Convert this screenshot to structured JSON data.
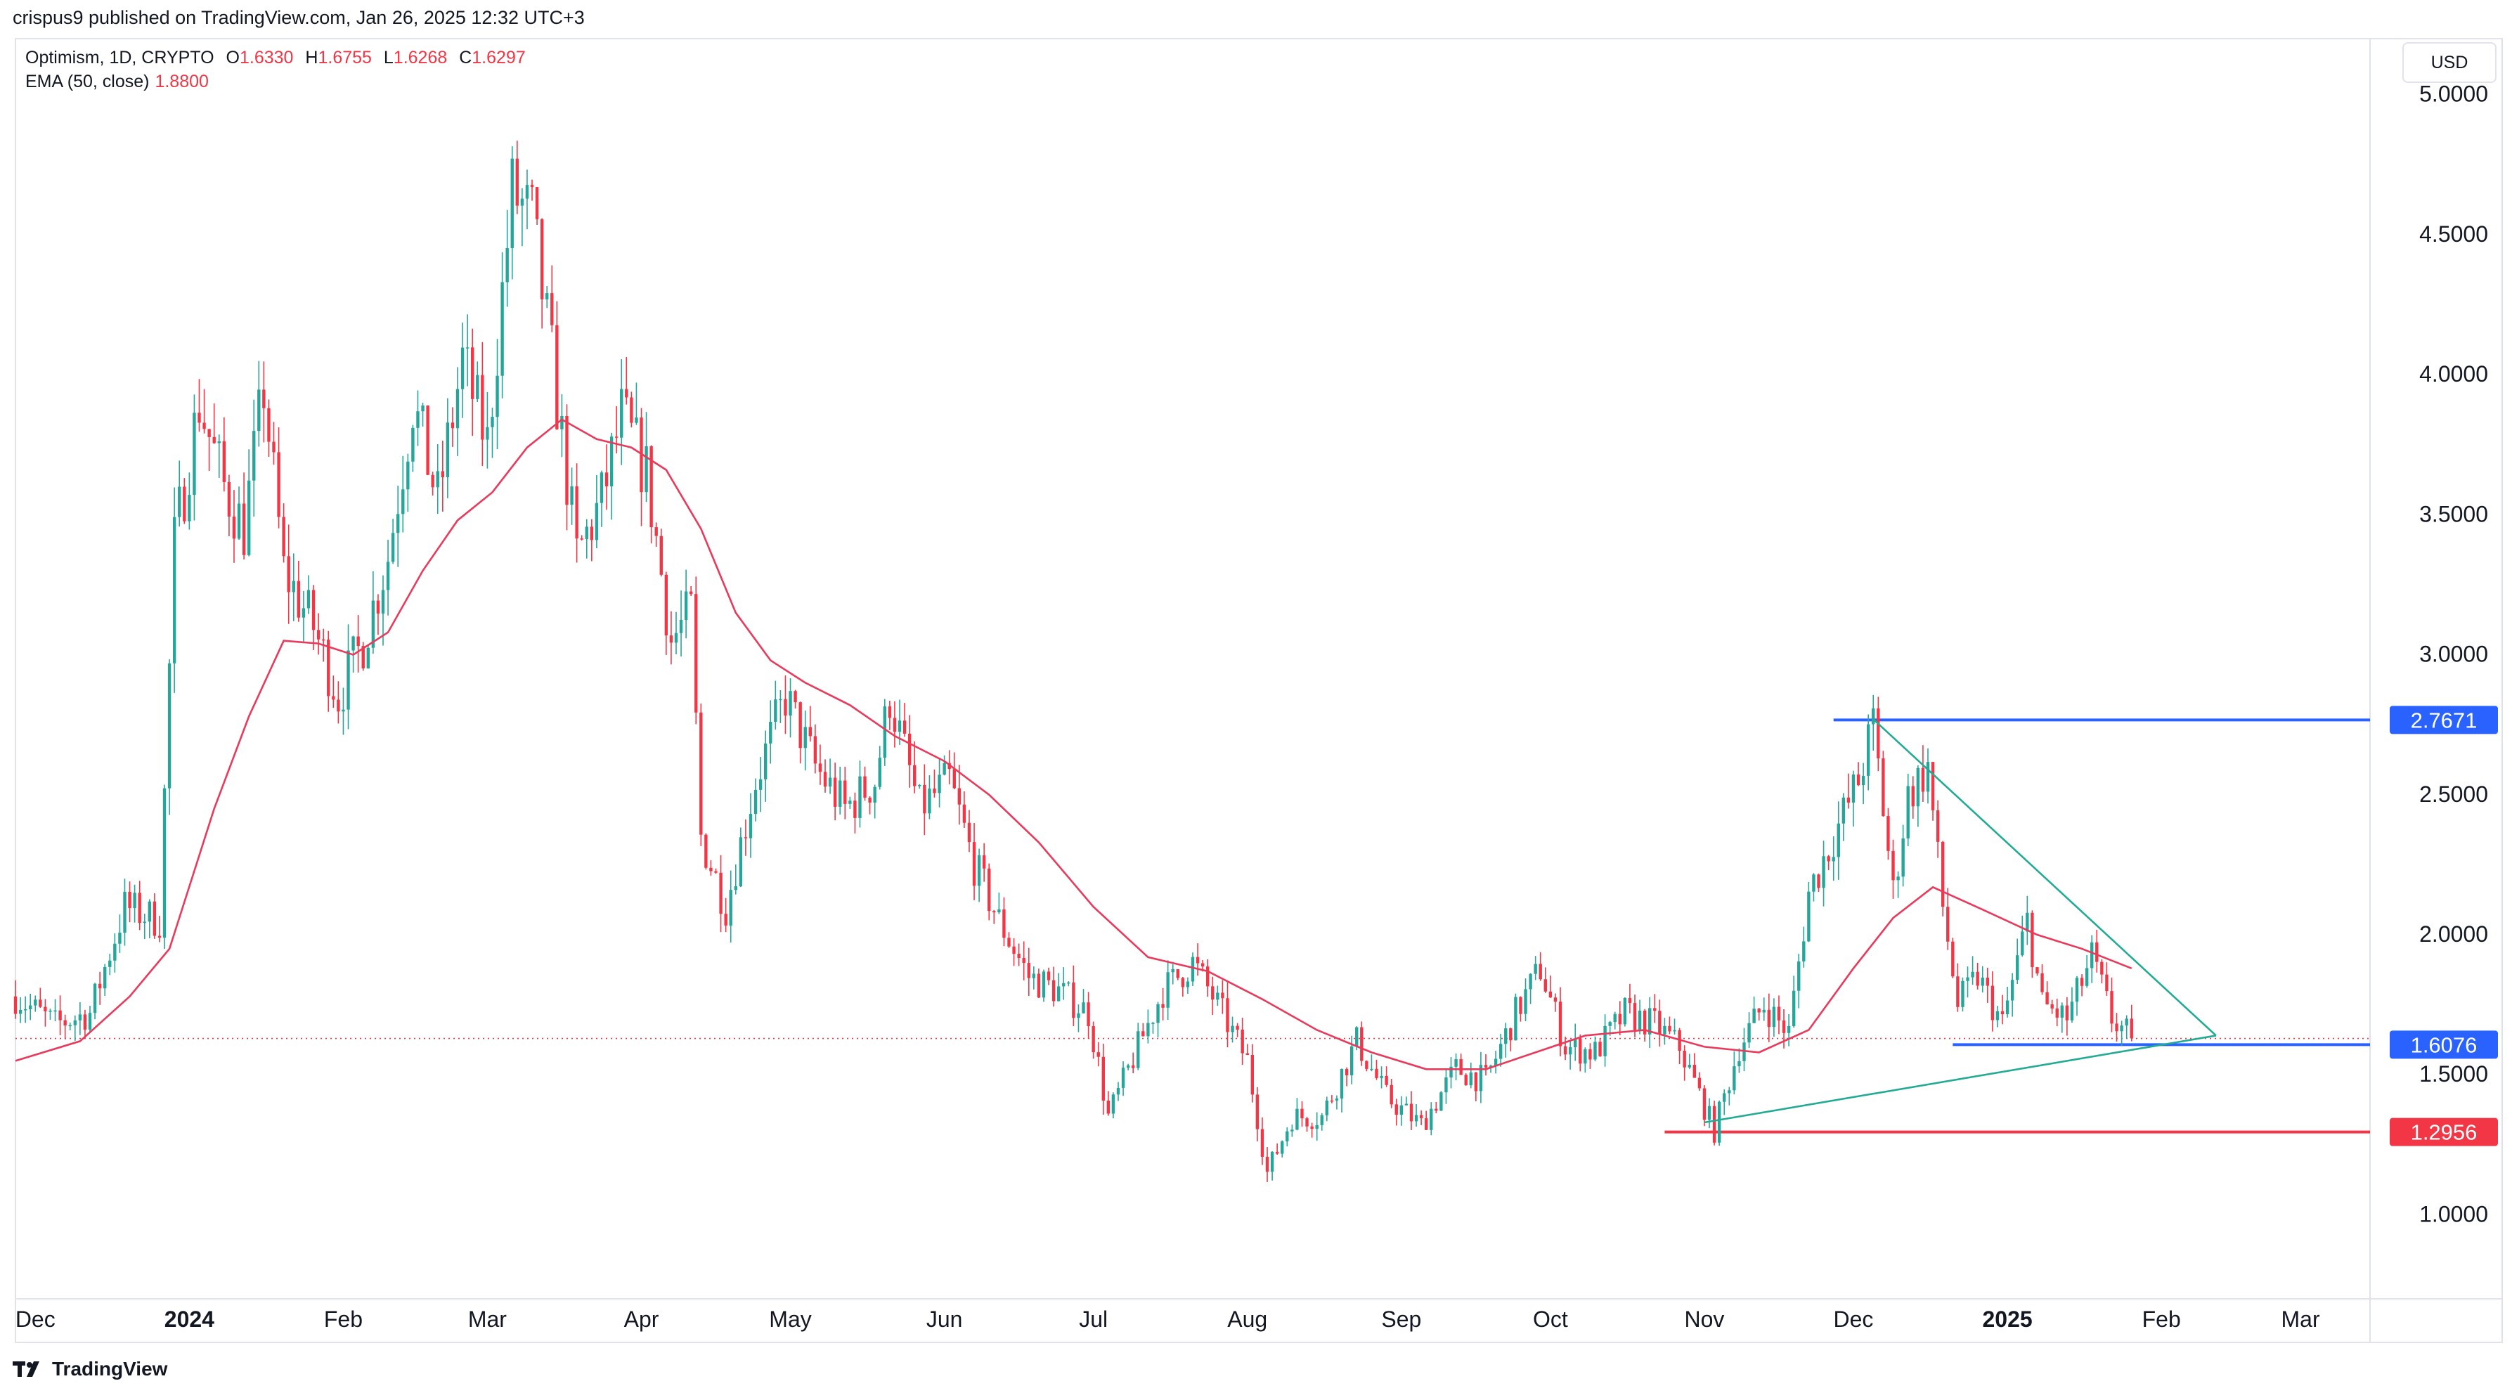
{
  "header": {
    "publisher_line": "crispus9 published on TradingView.com, Jan 26, 2025 12:32 UTC+3"
  },
  "legend": {
    "symbol": "Optimism, 1D, CRYPTO",
    "open_label": "O",
    "open": "1.6330",
    "high_label": "H",
    "high": "1.6755",
    "low_label": "L",
    "low": "1.6268",
    "close_label": "C",
    "close": "1.6297",
    "ema_label": "EMA (50, close)",
    "ema_value": "1.8800"
  },
  "currency_button": "USD",
  "footer": {
    "brand": "TradingView"
  },
  "colors": {
    "up": "#26a69a",
    "down": "#f23645",
    "ema": "#ea3a5c",
    "level_blue": "#2962ff",
    "level_red": "#f23645",
    "trend": "#22ab94"
  },
  "chart_data": {
    "type": "candlestick",
    "interval": "1D",
    "y_scale": "linear",
    "ylim": [
      0.7,
      5.2
    ],
    "y_ticks": [
      "1.0000",
      "1.5000",
      "2.0000",
      "2.5000",
      "3.0000",
      "3.5000",
      "4.0000",
      "4.5000",
      "5.0000"
    ],
    "x_range": [
      "2023-11-27",
      "2025-03-15"
    ],
    "x_ticks": [
      {
        "label": "Dec",
        "date": "2023-12-01",
        "bold": false
      },
      {
        "label": "2024",
        "date": "2024-01-01",
        "bold": true
      },
      {
        "label": "Feb",
        "date": "2024-02-01",
        "bold": false
      },
      {
        "label": "Mar",
        "date": "2024-03-01",
        "bold": false
      },
      {
        "label": "Apr",
        "date": "2024-04-01",
        "bold": false
      },
      {
        "label": "May",
        "date": "2024-05-01",
        "bold": false
      },
      {
        "label": "Jun",
        "date": "2024-06-01",
        "bold": false
      },
      {
        "label": "Jul",
        "date": "2024-07-01",
        "bold": false
      },
      {
        "label": "Aug",
        "date": "2024-08-01",
        "bold": false
      },
      {
        "label": "Sep",
        "date": "2024-09-01",
        "bold": false
      },
      {
        "label": "Oct",
        "date": "2024-10-01",
        "bold": false
      },
      {
        "label": "Nov",
        "date": "2024-11-01",
        "bold": false
      },
      {
        "label": "Dec",
        "date": "2024-12-01",
        "bold": false
      },
      {
        "label": "2025",
        "date": "2025-01-01",
        "bold": true
      },
      {
        "label": "Feb",
        "date": "2025-02-01",
        "bold": false
      },
      {
        "label": "Mar",
        "date": "2025-03-01",
        "bold": false
      }
    ],
    "close_path": [
      [
        "2023-11-27",
        1.78
      ],
      [
        "2023-12-05",
        1.68
      ],
      [
        "2023-12-12",
        1.72
      ],
      [
        "2023-12-19",
        2.1
      ],
      [
        "2023-12-26",
        2.05
      ],
      [
        "2023-12-29",
        3.4
      ],
      [
        "2024-01-03",
        3.9
      ],
      [
        "2024-01-08",
        3.6
      ],
      [
        "2024-01-12",
        3.45
      ],
      [
        "2024-01-16",
        3.95
      ],
      [
        "2024-01-20",
        3.3
      ],
      [
        "2024-01-26",
        3.1
      ],
      [
        "2024-01-31",
        2.85
      ],
      [
        "2024-02-05",
        3.05
      ],
      [
        "2024-02-10",
        3.35
      ],
      [
        "2024-02-15",
        3.9
      ],
      [
        "2024-02-20",
        3.55
      ],
      [
        "2024-02-25",
        4.05
      ],
      [
        "2024-03-01",
        3.75
      ],
      [
        "2024-03-06",
        4.65
      ],
      [
        "2024-03-10",
        4.55
      ],
      [
        "2024-03-14",
        4.05
      ],
      [
        "2024-03-19",
        3.35
      ],
      [
        "2024-03-24",
        3.55
      ],
      [
        "2024-03-28",
        3.85
      ],
      [
        "2024-04-02",
        3.65
      ],
      [
        "2024-04-07",
        3.05
      ],
      [
        "2024-04-11",
        3.15
      ],
      [
        "2024-04-13",
        2.35
      ],
      [
        "2024-04-18",
        2.1
      ],
      [
        "2024-04-24",
        2.55
      ],
      [
        "2024-04-30",
        2.85
      ],
      [
        "2024-05-06",
        2.6
      ],
      [
        "2024-05-12",
        2.45
      ],
      [
        "2024-05-18",
        2.55
      ],
      [
        "2024-05-21",
        2.85
      ],
      [
        "2024-05-27",
        2.45
      ],
      [
        "2024-06-02",
        2.55
      ],
      [
        "2024-06-07",
        2.25
      ],
      [
        "2024-06-12",
        2.05
      ],
      [
        "2024-06-18",
        1.85
      ],
      [
        "2024-06-24",
        1.8
      ],
      [
        "2024-06-30",
        1.72
      ],
      [
        "2024-07-04",
        1.35
      ],
      [
        "2024-07-10",
        1.6
      ],
      [
        "2024-07-15",
        1.8
      ],
      [
        "2024-07-21",
        1.9
      ],
      [
        "2024-07-26",
        1.75
      ],
      [
        "2024-08-01",
        1.55
      ],
      [
        "2024-08-05",
        1.15
      ],
      [
        "2024-08-10",
        1.35
      ],
      [
        "2024-08-16",
        1.35
      ],
      [
        "2024-08-23",
        1.62
      ],
      [
        "2024-08-29",
        1.42
      ],
      [
        "2024-09-05",
        1.32
      ],
      [
        "2024-09-12",
        1.52
      ],
      [
        "2024-09-18",
        1.48
      ],
      [
        "2024-09-24",
        1.72
      ],
      [
        "2024-09-29",
        1.88
      ],
      [
        "2024-10-04",
        1.6
      ],
      [
        "2024-10-10",
        1.58
      ],
      [
        "2024-10-16",
        1.72
      ],
      [
        "2024-10-22",
        1.68
      ],
      [
        "2024-10-27",
        1.6
      ],
      [
        "2024-11-03",
        1.3
      ],
      [
        "2024-11-08",
        1.6
      ],
      [
        "2024-11-13",
        1.75
      ],
      [
        "2024-11-18",
        1.65
      ],
      [
        "2024-11-22",
        2.15
      ],
      [
        "2024-11-27",
        2.35
      ],
      [
        "2024-12-02",
        2.55
      ],
      [
        "2024-12-05",
        2.75
      ],
      [
        "2024-12-09",
        2.15
      ],
      [
        "2024-12-12",
        2.5
      ],
      [
        "2024-12-16",
        2.6
      ],
      [
        "2024-12-19",
        2.1
      ],
      [
        "2024-12-22",
        1.75
      ],
      [
        "2024-12-26",
        1.85
      ],
      [
        "2024-12-31",
        1.68
      ],
      [
        "2025-01-05",
        2.05
      ],
      [
        "2025-01-08",
        1.75
      ],
      [
        "2025-01-13",
        1.7
      ],
      [
        "2025-01-18",
        1.92
      ],
      [
        "2025-01-22",
        1.7
      ],
      [
        "2025-01-26",
        1.63
      ]
    ],
    "ema_line": [
      [
        "2023-11-27",
        1.55
      ],
      [
        "2023-12-10",
        1.62
      ],
      [
        "2023-12-20",
        1.78
      ],
      [
        "2023-12-28",
        1.95
      ],
      [
        "2024-01-06",
        2.45
      ],
      [
        "2024-01-13",
        2.78
      ],
      [
        "2024-01-20",
        3.05
      ],
      [
        "2024-01-27",
        3.04
      ],
      [
        "2024-02-03",
        3.0
      ],
      [
        "2024-02-10",
        3.08
      ],
      [
        "2024-02-17",
        3.3
      ],
      [
        "2024-02-24",
        3.48
      ],
      [
        "2024-03-02",
        3.58
      ],
      [
        "2024-03-09",
        3.74
      ],
      [
        "2024-03-16",
        3.84
      ],
      [
        "2024-03-23",
        3.77
      ],
      [
        "2024-03-30",
        3.74
      ],
      [
        "2024-04-06",
        3.66
      ],
      [
        "2024-04-13",
        3.45
      ],
      [
        "2024-04-20",
        3.15
      ],
      [
        "2024-04-27",
        2.98
      ],
      [
        "2024-05-04",
        2.9
      ],
      [
        "2024-05-13",
        2.82
      ],
      [
        "2024-05-22",
        2.71
      ],
      [
        "2024-06-01",
        2.62
      ],
      [
        "2024-06-10",
        2.5
      ],
      [
        "2024-06-20",
        2.33
      ],
      [
        "2024-07-01",
        2.1
      ],
      [
        "2024-07-12",
        1.92
      ],
      [
        "2024-07-24",
        1.87
      ],
      [
        "2024-08-04",
        1.77
      ],
      [
        "2024-08-15",
        1.66
      ],
      [
        "2024-08-26",
        1.58
      ],
      [
        "2024-09-06",
        1.52
      ],
      [
        "2024-09-18",
        1.52
      ],
      [
        "2024-09-28",
        1.58
      ],
      [
        "2024-10-08",
        1.64
      ],
      [
        "2024-10-20",
        1.66
      ],
      [
        "2024-11-01",
        1.6
      ],
      [
        "2024-11-12",
        1.58
      ],
      [
        "2024-11-22",
        1.66
      ],
      [
        "2024-12-01",
        1.88
      ],
      [
        "2024-12-09",
        2.06
      ],
      [
        "2024-12-17",
        2.17
      ],
      [
        "2024-12-27",
        2.09
      ],
      [
        "2025-01-07",
        2.0
      ],
      [
        "2025-01-16",
        1.95
      ],
      [
        "2025-01-26",
        1.88
      ]
    ],
    "horizontal_levels": [
      {
        "label": "2.7671",
        "value": 2.7671,
        "color": "#2962ff",
        "from": "2024-11-27"
      },
      {
        "label": "1.6076",
        "value": 1.6076,
        "color": "#2962ff",
        "from": "2024-12-21"
      },
      {
        "label": "1.2956",
        "value": 1.2956,
        "color": "#f23645",
        "from": "2024-10-24"
      }
    ],
    "current_price_line": {
      "value": 1.6297,
      "style": "dotted"
    },
    "trendlines": [
      {
        "from": [
          "2024-12-05",
          2.77
        ],
        "to": [
          "2025-02-12",
          1.64
        ]
      },
      {
        "from": [
          "2024-11-01",
          1.33
        ],
        "to": [
          "2025-02-12",
          1.64
        ]
      }
    ]
  }
}
